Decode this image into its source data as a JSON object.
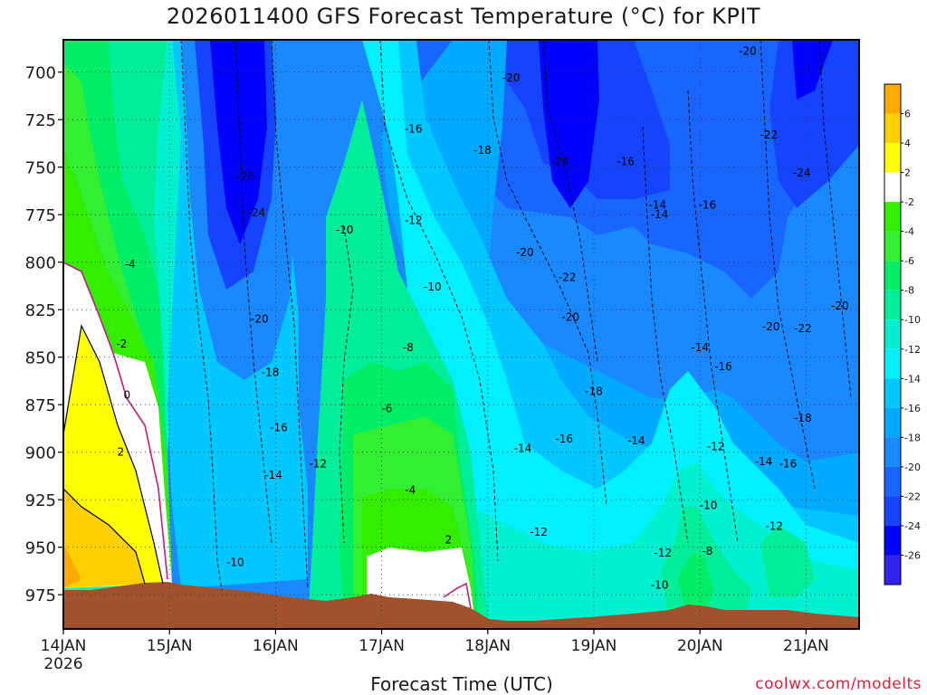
{
  "chart_data": {
    "type": "heatmap",
    "title": "2026011400 GFS Forecast Temperature (°C) for KPIT",
    "xlabel": "Forecast Time (UTC)",
    "ylabel": "",
    "credit": "coolwx.com/modelts",
    "x_ticks": [
      {
        "label": "14JAN",
        "sublabel": "2026",
        "day": 0
      },
      {
        "label": "15JAN",
        "day": 1
      },
      {
        "label": "16JAN",
        "day": 2
      },
      {
        "label": "17JAN",
        "day": 3
      },
      {
        "label": "18JAN",
        "day": 4
      },
      {
        "label": "19JAN",
        "day": 5
      },
      {
        "label": "20JAN",
        "day": 6
      },
      {
        "label": "21JAN",
        "day": 7
      }
    ],
    "xlim_days": [
      0,
      7.5
    ],
    "y_axis": "pressure (hPa)",
    "y_ticks": [
      700,
      725,
      750,
      775,
      800,
      825,
      850,
      875,
      900,
      925,
      950,
      975
    ],
    "ylim": [
      683,
      993
    ],
    "grid": true,
    "colorbar": {
      "placement": "right",
      "labels": [
        6,
        4,
        2,
        -2,
        -4,
        -6,
        -8,
        -10,
        -12,
        -14,
        -16,
        -18,
        -20,
        -22,
        -24,
        -26
      ],
      "colors": [
        "#ffaa00",
        "#ffd000",
        "#ffff00",
        "#ffffff",
        "#33ee00",
        "#33ee33",
        "#00ee66",
        "#00ee99",
        "#00f0d0",
        "#00f0ff",
        "#00c8ff",
        "#00aaff",
        "#1a88ff",
        "#1866ff",
        "#1444ff",
        "#0000ff",
        "#3322ee"
      ]
    },
    "contour_labels": [
      {
        "text": "-26",
        "day": 1.72,
        "p": 755
      },
      {
        "text": "-24",
        "day": 1.82,
        "p": 774
      },
      {
        "text": "-20",
        "day": 1.85,
        "p": 830
      },
      {
        "text": "-18",
        "day": 1.95,
        "p": 858
      },
      {
        "text": "-16",
        "day": 2.03,
        "p": 887
      },
      {
        "text": "-14",
        "day": 1.98,
        "p": 912
      },
      {
        "text": "-12",
        "day": 2.4,
        "p": 906
      },
      {
        "text": "-10",
        "day": 1.62,
        "p": 958
      },
      {
        "text": "-10",
        "day": 2.65,
        "p": 783
      },
      {
        "text": "-12",
        "day": 3.3,
        "p": 778
      },
      {
        "text": "-10",
        "day": 3.48,
        "p": 813
      },
      {
        "text": "-8",
        "day": 3.25,
        "p": 845
      },
      {
        "text": "-6",
        "day": 3.05,
        "p": 877
      },
      {
        "text": "-4",
        "day": 3.27,
        "p": 920
      },
      {
        "text": "2",
        "day": 3.63,
        "p": 946
      },
      {
        "text": "-16",
        "day": 3.3,
        "p": 730
      },
      {
        "text": "-18",
        "day": 3.95,
        "p": 741
      },
      {
        "text": "-20",
        "day": 4.22,
        "p": 703
      },
      {
        "text": "-20",
        "day": 4.35,
        "p": 795
      },
      {
        "text": "-22",
        "day": 4.75,
        "p": 808
      },
      {
        "text": "-20",
        "day": 4.78,
        "p": 829
      },
      {
        "text": "-24",
        "day": 4.68,
        "p": 747
      },
      {
        "text": "-18",
        "day": 5.0,
        "p": 868
      },
      {
        "text": "-16",
        "day": 4.72,
        "p": 893
      },
      {
        "text": "-14",
        "day": 4.33,
        "p": 898
      },
      {
        "text": "-12",
        "day": 4.48,
        "p": 942
      },
      {
        "text": "-16",
        "day": 5.3,
        "p": 747
      },
      {
        "text": "-14",
        "day": 5.6,
        "p": 770
      },
      {
        "text": "-14",
        "day": 5.62,
        "p": 775
      },
      {
        "text": "-14",
        "day": 5.4,
        "p": 894
      },
      {
        "text": "-12",
        "day": 5.65,
        "p": 953
      },
      {
        "text": "-10",
        "day": 5.62,
        "p": 970
      },
      {
        "text": "-16",
        "day": 6.07,
        "p": 770
      },
      {
        "text": "-20",
        "day": 6.45,
        "p": 689
      },
      {
        "text": "-22",
        "day": 6.65,
        "p": 733
      },
      {
        "text": "-24",
        "day": 6.96,
        "p": 753
      },
      {
        "text": "-14",
        "day": 6.0,
        "p": 845
      },
      {
        "text": "-16",
        "day": 6.22,
        "p": 855
      },
      {
        "text": "-12",
        "day": 6.15,
        "p": 897
      },
      {
        "text": "-10",
        "day": 6.08,
        "p": 928
      },
      {
        "text": "-8",
        "day": 6.07,
        "p": 952
      },
      {
        "text": "-20",
        "day": 6.67,
        "p": 834
      },
      {
        "text": "-22",
        "day": 6.97,
        "p": 835
      },
      {
        "text": "-20",
        "day": 7.32,
        "p": 823
      },
      {
        "text": "-18",
        "day": 6.97,
        "p": 882
      },
      {
        "text": "-14",
        "day": 6.6,
        "p": 905
      },
      {
        "text": "-16",
        "day": 6.83,
        "p": 906
      },
      {
        "text": "-12",
        "day": 6.7,
        "p": 939
      },
      {
        "text": "0",
        "day": 0.6,
        "p": 870
      },
      {
        "text": "2",
        "day": 0.54,
        "p": 900
      },
      {
        "text": "-2",
        "day": 0.55,
        "p": 843
      },
      {
        "text": "-4",
        "day": 0.63,
        "p": 801
      }
    ]
  }
}
